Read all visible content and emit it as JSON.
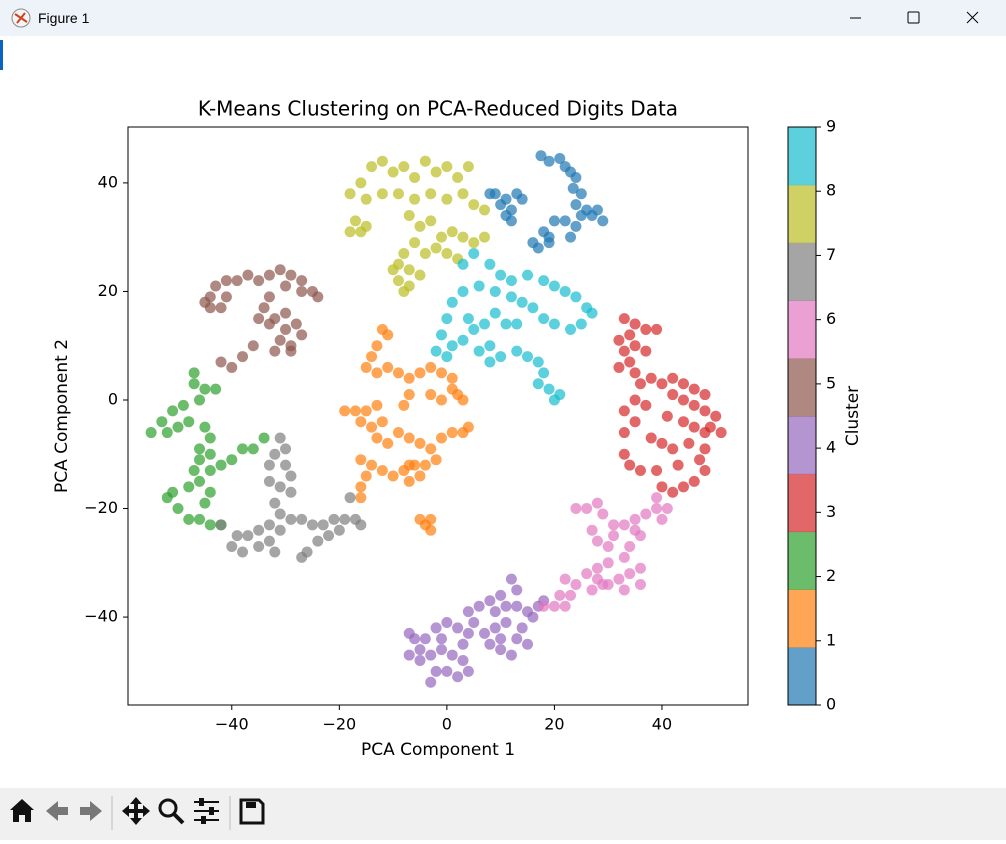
{
  "window": {
    "title": "Figure 1"
  },
  "chart_data": {
    "type": "scatter",
    "title": "K-Means Clustering on PCA-Reduced Digits Data",
    "x_label": "PCA Component 1",
    "y_label": "PCA Component 2",
    "xlim": [
      -59.3,
      56
    ],
    "ylim": [
      -56.2,
      50.3
    ],
    "xticks": [
      {
        "value": -40,
        "label": "−40"
      },
      {
        "value": -20,
        "label": "−20"
      },
      0,
      20,
      40
    ],
    "yticks": [
      {
        "value": -40,
        "label": "−40"
      },
      {
        "value": -20,
        "label": "−20"
      },
      0,
      20,
      40
    ],
    "alpha": 0.7,
    "colorbar": {
      "label": "Cluster",
      "lim": [
        0,
        9
      ],
      "ticks": [
        0,
        1,
        2,
        3,
        4,
        5,
        6,
        7,
        8,
        9
      ],
      "colors": [
        "#1f77b4",
        "#ff7f0e",
        "#2ca02c",
        "#d62728",
        "#9467bd",
        "#8c564b",
        "#e377c2",
        "#7f7f7f",
        "#bcbd22",
        "#17becf"
      ]
    },
    "series": [
      {
        "color": "#1f77b4",
        "x": [
          17.5,
          19,
          21,
          22,
          23,
          24,
          23.5,
          25,
          24,
          26,
          27,
          29,
          28,
          25,
          22,
          24,
          20,
          19,
          18,
          23,
          9,
          11,
          13,
          14,
          12,
          11,
          12,
          8,
          10,
          17,
          19,
          16
        ],
        "y": [
          45,
          44,
          44.5,
          43,
          42,
          41,
          39,
          38,
          36,
          35,
          34,
          33,
          35,
          34,
          33,
          32,
          33,
          30,
          31,
          30,
          38,
          37,
          38,
          37,
          35,
          34,
          33,
          38,
          36,
          28,
          29,
          29
        ]
      },
      {
        "color": "#ff7f0e",
        "x": [
          -12,
          -11,
          -13,
          -14,
          -15,
          -13,
          -11,
          -9,
          -7,
          -5,
          -3,
          -1,
          1,
          1,
          2,
          3,
          -1,
          -3,
          -7,
          -8,
          -13,
          -15,
          -17,
          -19,
          -16,
          -14,
          -12,
          -13,
          -11,
          -9,
          -7,
          -5,
          -3,
          -1,
          1,
          3,
          4,
          -2,
          -4,
          -6,
          -8,
          -10,
          -12,
          -14,
          -16,
          -15,
          -16,
          -16,
          -7,
          -5,
          -7,
          -4,
          -3,
          -5,
          -3
        ],
        "y": [
          13,
          12,
          10,
          8,
          6,
          5,
          6,
          5,
          4,
          5,
          6,
          5,
          4,
          2,
          1,
          0,
          0,
          1,
          1,
          -1,
          -1,
          -2,
          -2,
          -2,
          -4,
          -5,
          -4,
          -7,
          -8,
          -6,
          -7,
          -8,
          -9,
          -7,
          -6,
          -6,
          -5,
          -11,
          -12,
          -12,
          -13,
          -14,
          -13,
          -12,
          -11,
          -14,
          -16,
          -18,
          -15,
          -14,
          -12,
          -23,
          -22,
          -22,
          -24
        ]
      },
      {
        "color": "#2ca02c",
        "x": [
          -47,
          -47,
          -45,
          -43,
          -46,
          -49,
          -51,
          -53,
          -55,
          -52,
          -50,
          -48,
          -45,
          -44,
          -46,
          -44,
          -46,
          -47,
          -44,
          -42,
          -40,
          -38,
          -36,
          -34,
          -46,
          -48,
          -51,
          -52,
          -50,
          -48,
          -46,
          -44,
          -42,
          -45,
          -44
        ],
        "y": [
          5,
          3,
          2,
          2,
          0,
          -1,
          -2,
          -4,
          -6,
          -6,
          -5,
          -4,
          -5,
          -7,
          -9,
          -10,
          -11,
          -13,
          -13,
          -12,
          -11,
          -9,
          -9,
          -7,
          -15,
          -16,
          -17,
          -18,
          -20,
          -22,
          -22,
          -23,
          -23,
          -19,
          -17
        ]
      },
      {
        "color": "#d62728",
        "x": [
          33,
          35,
          37,
          39,
          34,
          32,
          33,
          35,
          37,
          34,
          32,
          35,
          36,
          38,
          40,
          42,
          44,
          46,
          48,
          42,
          44,
          46,
          48,
          50,
          49,
          51,
          48,
          46,
          44,
          41,
          37,
          35,
          33,
          35,
          33,
          38,
          40,
          42,
          45,
          48,
          47,
          48,
          46,
          44,
          42,
          40,
          39,
          36,
          34,
          33,
          43
        ],
        "y": [
          15,
          14,
          13,
          13,
          12,
          11,
          9,
          10,
          9,
          7,
          6,
          5,
          3,
          4,
          3,
          4,
          3,
          2,
          1,
          1,
          0,
          -1,
          -2,
          -3,
          -5,
          -6,
          -6,
          -5,
          -4,
          -3,
          -1,
          0,
          -2,
          -4,
          -6,
          -7,
          -8,
          -9,
          -8,
          -9,
          -11,
          -13,
          -15,
          -16,
          -17,
          -16,
          -13,
          -13,
          -12,
          -10,
          -12
        ]
      },
      {
        "color": "#9467bd",
        "x": [
          12,
          13,
          10,
          8,
          6,
          4,
          9,
          11,
          13,
          15,
          17,
          16,
          14,
          11,
          9,
          7,
          4,
          2,
          0,
          -2,
          -4,
          -6,
          -7,
          -5,
          -3,
          -1,
          1,
          3,
          4,
          2,
          0,
          -2,
          -3,
          -5,
          -7,
          8,
          10,
          12,
          10,
          3,
          -1,
          5,
          18,
          15,
          13
        ],
        "y": [
          -33,
          -35,
          -36,
          -37,
          -38,
          -39,
          -39,
          -38,
          -38,
          -39,
          -38,
          -40,
          -42,
          -41,
          -42,
          -43,
          -43,
          -42,
          -41,
          -42,
          -44,
          -44,
          -43,
          -46,
          -47,
          -46,
          -47,
          -48,
          -50,
          -51,
          -50,
          -50,
          -52,
          -48,
          -47,
          -45,
          -46,
          -47,
          -44,
          -45,
          -44,
          -41,
          -37,
          -45,
          -44
        ]
      },
      {
        "color": "#8c564b",
        "x": [
          -43,
          -41,
          -39,
          -37,
          -35,
          -33,
          -31,
          -29,
          -27,
          -25,
          -24,
          -27,
          -30,
          -33,
          -34,
          -32,
          -30,
          -28,
          -30,
          -31,
          -29,
          -27,
          -33,
          -35,
          -36,
          -38,
          -40,
          -42,
          -45,
          -44,
          -41,
          -42,
          -44,
          -32,
          -29
        ],
        "y": [
          21,
          22,
          22,
          23,
          22,
          23,
          24,
          23,
          22,
          20,
          19,
          20,
          21,
          19,
          17,
          15,
          16,
          14,
          13,
          11,
          10,
          12,
          14,
          15,
          10,
          8,
          6,
          7,
          18,
          19,
          19,
          17,
          17,
          9,
          9
        ]
      },
      {
        "color": "#e377c2",
        "x": [
          24,
          26,
          28,
          29,
          31,
          33,
          35,
          35,
          37,
          39,
          39,
          41,
          40,
          36,
          34,
          33,
          30,
          28,
          26,
          28,
          30,
          32,
          34,
          36,
          36,
          33,
          29,
          27,
          24,
          22,
          23,
          21,
          20,
          22,
          18,
          28,
          27,
          30,
          31
        ],
        "y": [
          -20,
          -20,
          -19,
          -21,
          -23,
          -23,
          -24,
          -22,
          -21,
          -20,
          -18,
          -20,
          -22,
          -25,
          -27,
          -29,
          -30,
          -31,
          -32,
          -33,
          -34,
          -33,
          -32,
          -31,
          -34,
          -35,
          -34,
          -35,
          -34,
          -33,
          -36,
          -36,
          -38,
          -38,
          -38,
          -26,
          -24,
          -27,
          -25
        ]
      },
      {
        "color": "#7f7f7f",
        "x": [
          -31,
          -30,
          -32,
          -30,
          -29,
          -33,
          -33,
          -31,
          -29,
          -32,
          -31,
          -33,
          -35,
          -37,
          -39,
          -40,
          -38,
          -35,
          -33,
          -31,
          -29,
          -27,
          -25,
          -23,
          -21,
          -19,
          -17,
          -16,
          -24,
          -26,
          -27,
          -22,
          -20,
          -42,
          -18,
          -32
        ],
        "y": [
          -7,
          -9,
          -10,
          -12,
          -14,
          -12,
          -15,
          -16,
          -17,
          -19,
          -21,
          -23,
          -24,
          -25,
          -25,
          -27,
          -28,
          -27,
          -26,
          -24,
          -22,
          -22,
          -23,
          -23,
          -22,
          -22,
          -22,
          -23,
          -26,
          -28,
          -29,
          -25,
          -24,
          -23,
          -18,
          -28
        ]
      },
      {
        "color": "#bcbd22",
        "x": [
          -14,
          -12,
          -10,
          -8,
          -6,
          -4,
          -2,
          0,
          2,
          4,
          -16,
          -18,
          -15,
          -12,
          -9,
          -6,
          -3,
          0,
          3,
          5,
          7,
          -17,
          -16,
          -18,
          -15,
          -7,
          -5,
          -3,
          -1,
          1,
          3,
          5,
          7,
          -6,
          -8,
          -4,
          -2,
          0,
          2,
          -9,
          -7,
          -9,
          -8,
          -7,
          -5,
          -10
        ],
        "y": [
          43,
          44,
          42,
          43,
          41,
          44,
          42,
          43,
          41,
          43,
          40,
          38,
          37,
          38,
          38,
          37,
          38,
          37,
          38,
          36,
          35,
          33,
          31,
          31,
          32,
          34,
          32,
          33,
          30,
          31,
          30,
          29,
          30,
          29,
          27,
          27,
          28,
          27,
          26,
          25,
          24,
          22,
          20,
          21,
          23,
          24
        ]
      },
      {
        "color": "#17becf",
        "x": [
          3,
          5,
          8,
          10,
          12,
          15,
          18,
          20,
          22,
          24,
          26,
          27,
          25,
          23,
          20,
          18,
          16,
          14,
          12,
          9,
          6,
          3,
          1,
          0,
          -1,
          1,
          3,
          5,
          7,
          8,
          6,
          8,
          10,
          13,
          15,
          17,
          18,
          17,
          19,
          20,
          21,
          4,
          9,
          11,
          13,
          -2,
          0
        ],
        "y": [
          25,
          27,
          25,
          23,
          22,
          23,
          22,
          21,
          20,
          19,
          17,
          16,
          14,
          13,
          14,
          15,
          17,
          18,
          19,
          20,
          21,
          20,
          18,
          15,
          12,
          10,
          11,
          13,
          14,
          10,
          9,
          7,
          8,
          9,
          8,
          7,
          5,
          3,
          2,
          0,
          1,
          15,
          16,
          14,
          14,
          9,
          8
        ]
      }
    ]
  }
}
